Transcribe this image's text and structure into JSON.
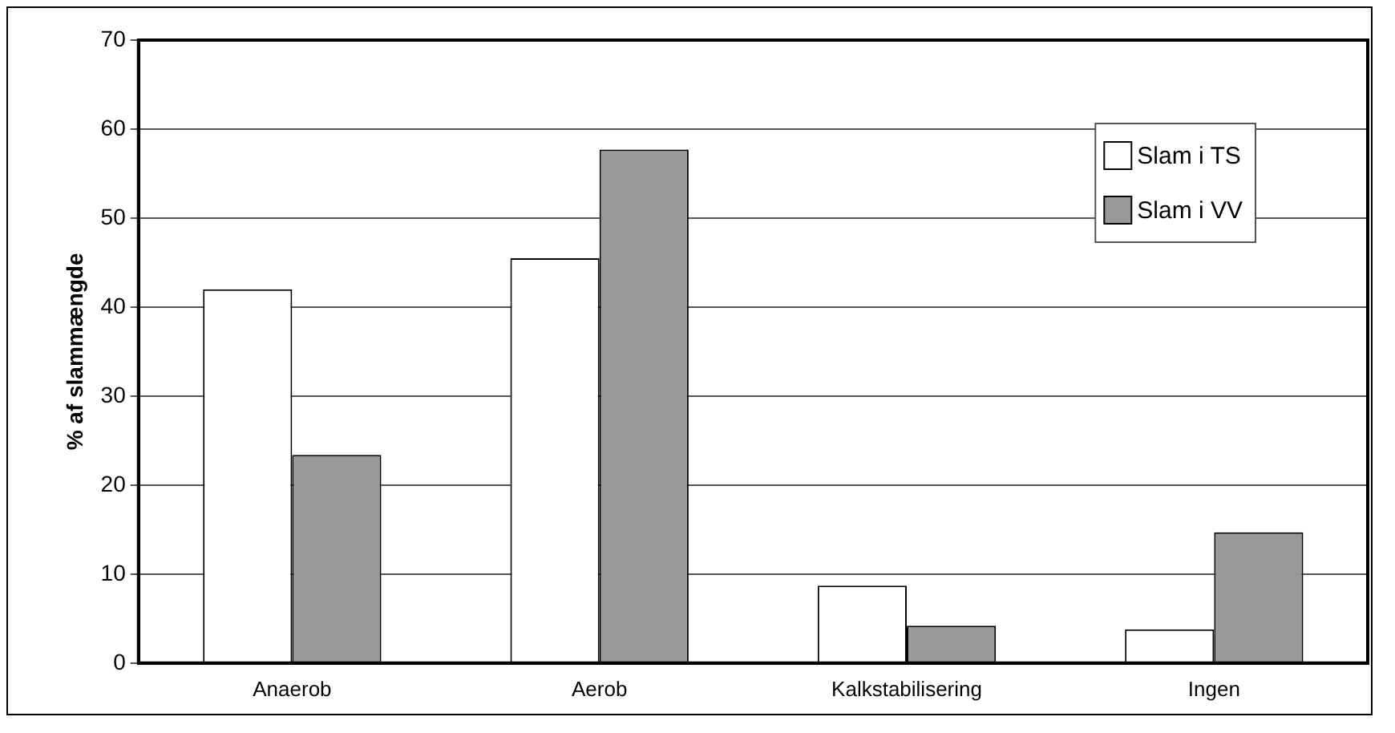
{
  "chart_data": {
    "type": "bar",
    "ylabel": "% af slammængde",
    "categories": [
      "Anaerob",
      "Aerob",
      "Kalkstabilisering",
      "Ingen"
    ],
    "series": [
      {
        "name": "Slam i TS",
        "color": "#ffffff",
        "values": [
          42,
          45.5,
          8.7,
          3.8
        ]
      },
      {
        "name": "Slam i VV",
        "color": "#999999",
        "values": [
          23.4,
          57.7,
          4.2,
          14.7
        ]
      }
    ],
    "ylim": [
      0,
      70
    ],
    "yticks": [
      0,
      10,
      20,
      30,
      40,
      50,
      60,
      70
    ],
    "grid": "y",
    "legend": "top right"
  }
}
